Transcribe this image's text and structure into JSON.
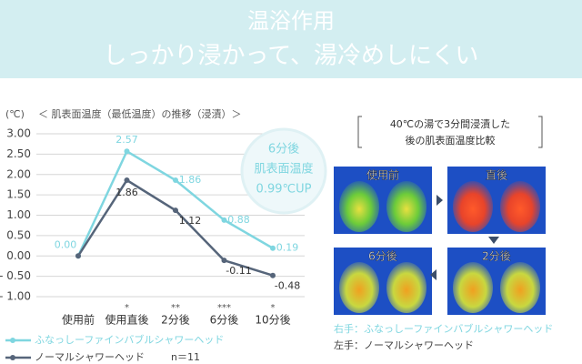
{
  "header": {
    "title": "温浴作用",
    "subtitle": "しっかり浸かって、湯冷めしにくい"
  },
  "chart_data": {
    "type": "line",
    "unit_label": "(℃)",
    "title": "＜ 肌表面温度（最低温度）の推移（浸漬）＞",
    "categories": [
      "使用前",
      "使用直後",
      "2分後",
      "6分後",
      "10分後"
    ],
    "significance": [
      null,
      "*",
      "**",
      "***",
      "*"
    ],
    "series": [
      {
        "name": "ふなっしーファインバブルシャワーヘッド",
        "color": "#7fd6e0",
        "values": [
          0.0,
          2.57,
          1.86,
          0.88,
          0.19
        ],
        "value_labels": [
          "0.00",
          "2.57",
          "1.86",
          "0.88",
          "0.19"
        ]
      },
      {
        "name": "ノーマルシャワーヘッド",
        "color": "#56657a",
        "values": [
          0.0,
          1.86,
          1.12,
          -0.11,
          -0.48
        ],
        "value_labels": [
          null,
          "1.86",
          "1.12",
          "-0.11",
          "-0.48"
        ]
      }
    ],
    "n_label": "n＝11",
    "ylim": [
      -1.0,
      3.0
    ],
    "yticks": [
      {
        "value": 3,
        "label": "3.00"
      },
      {
        "value": 2.5,
        "label": "2.50"
      },
      {
        "value": 2,
        "label": "2.00"
      },
      {
        "value": 1.5,
        "label": "1.50"
      },
      {
        "value": 1,
        "label": "1.00"
      },
      {
        "value": 0.5,
        "label": "0.50"
      },
      {
        "value": 0,
        "label": "0.00"
      },
      {
        "value": -0.5,
        "label": "- 0.50"
      },
      {
        "value": -1,
        "label": "- 1.00"
      }
    ],
    "grid": true,
    "callout": [
      "6分後",
      "肌表面温度",
      "0.99℃UP"
    ]
  },
  "thermal": {
    "caption": [
      "40℃の湯で3分間浸漬した",
      "後の肌表面温度比較"
    ],
    "panels": [
      "使用前",
      "直後",
      "6分後",
      "2分後"
    ],
    "notes": [
      "右手：ふなっしーファインバブルシャワーヘッド",
      "左手：ノーマルシャワーヘッド"
    ]
  }
}
